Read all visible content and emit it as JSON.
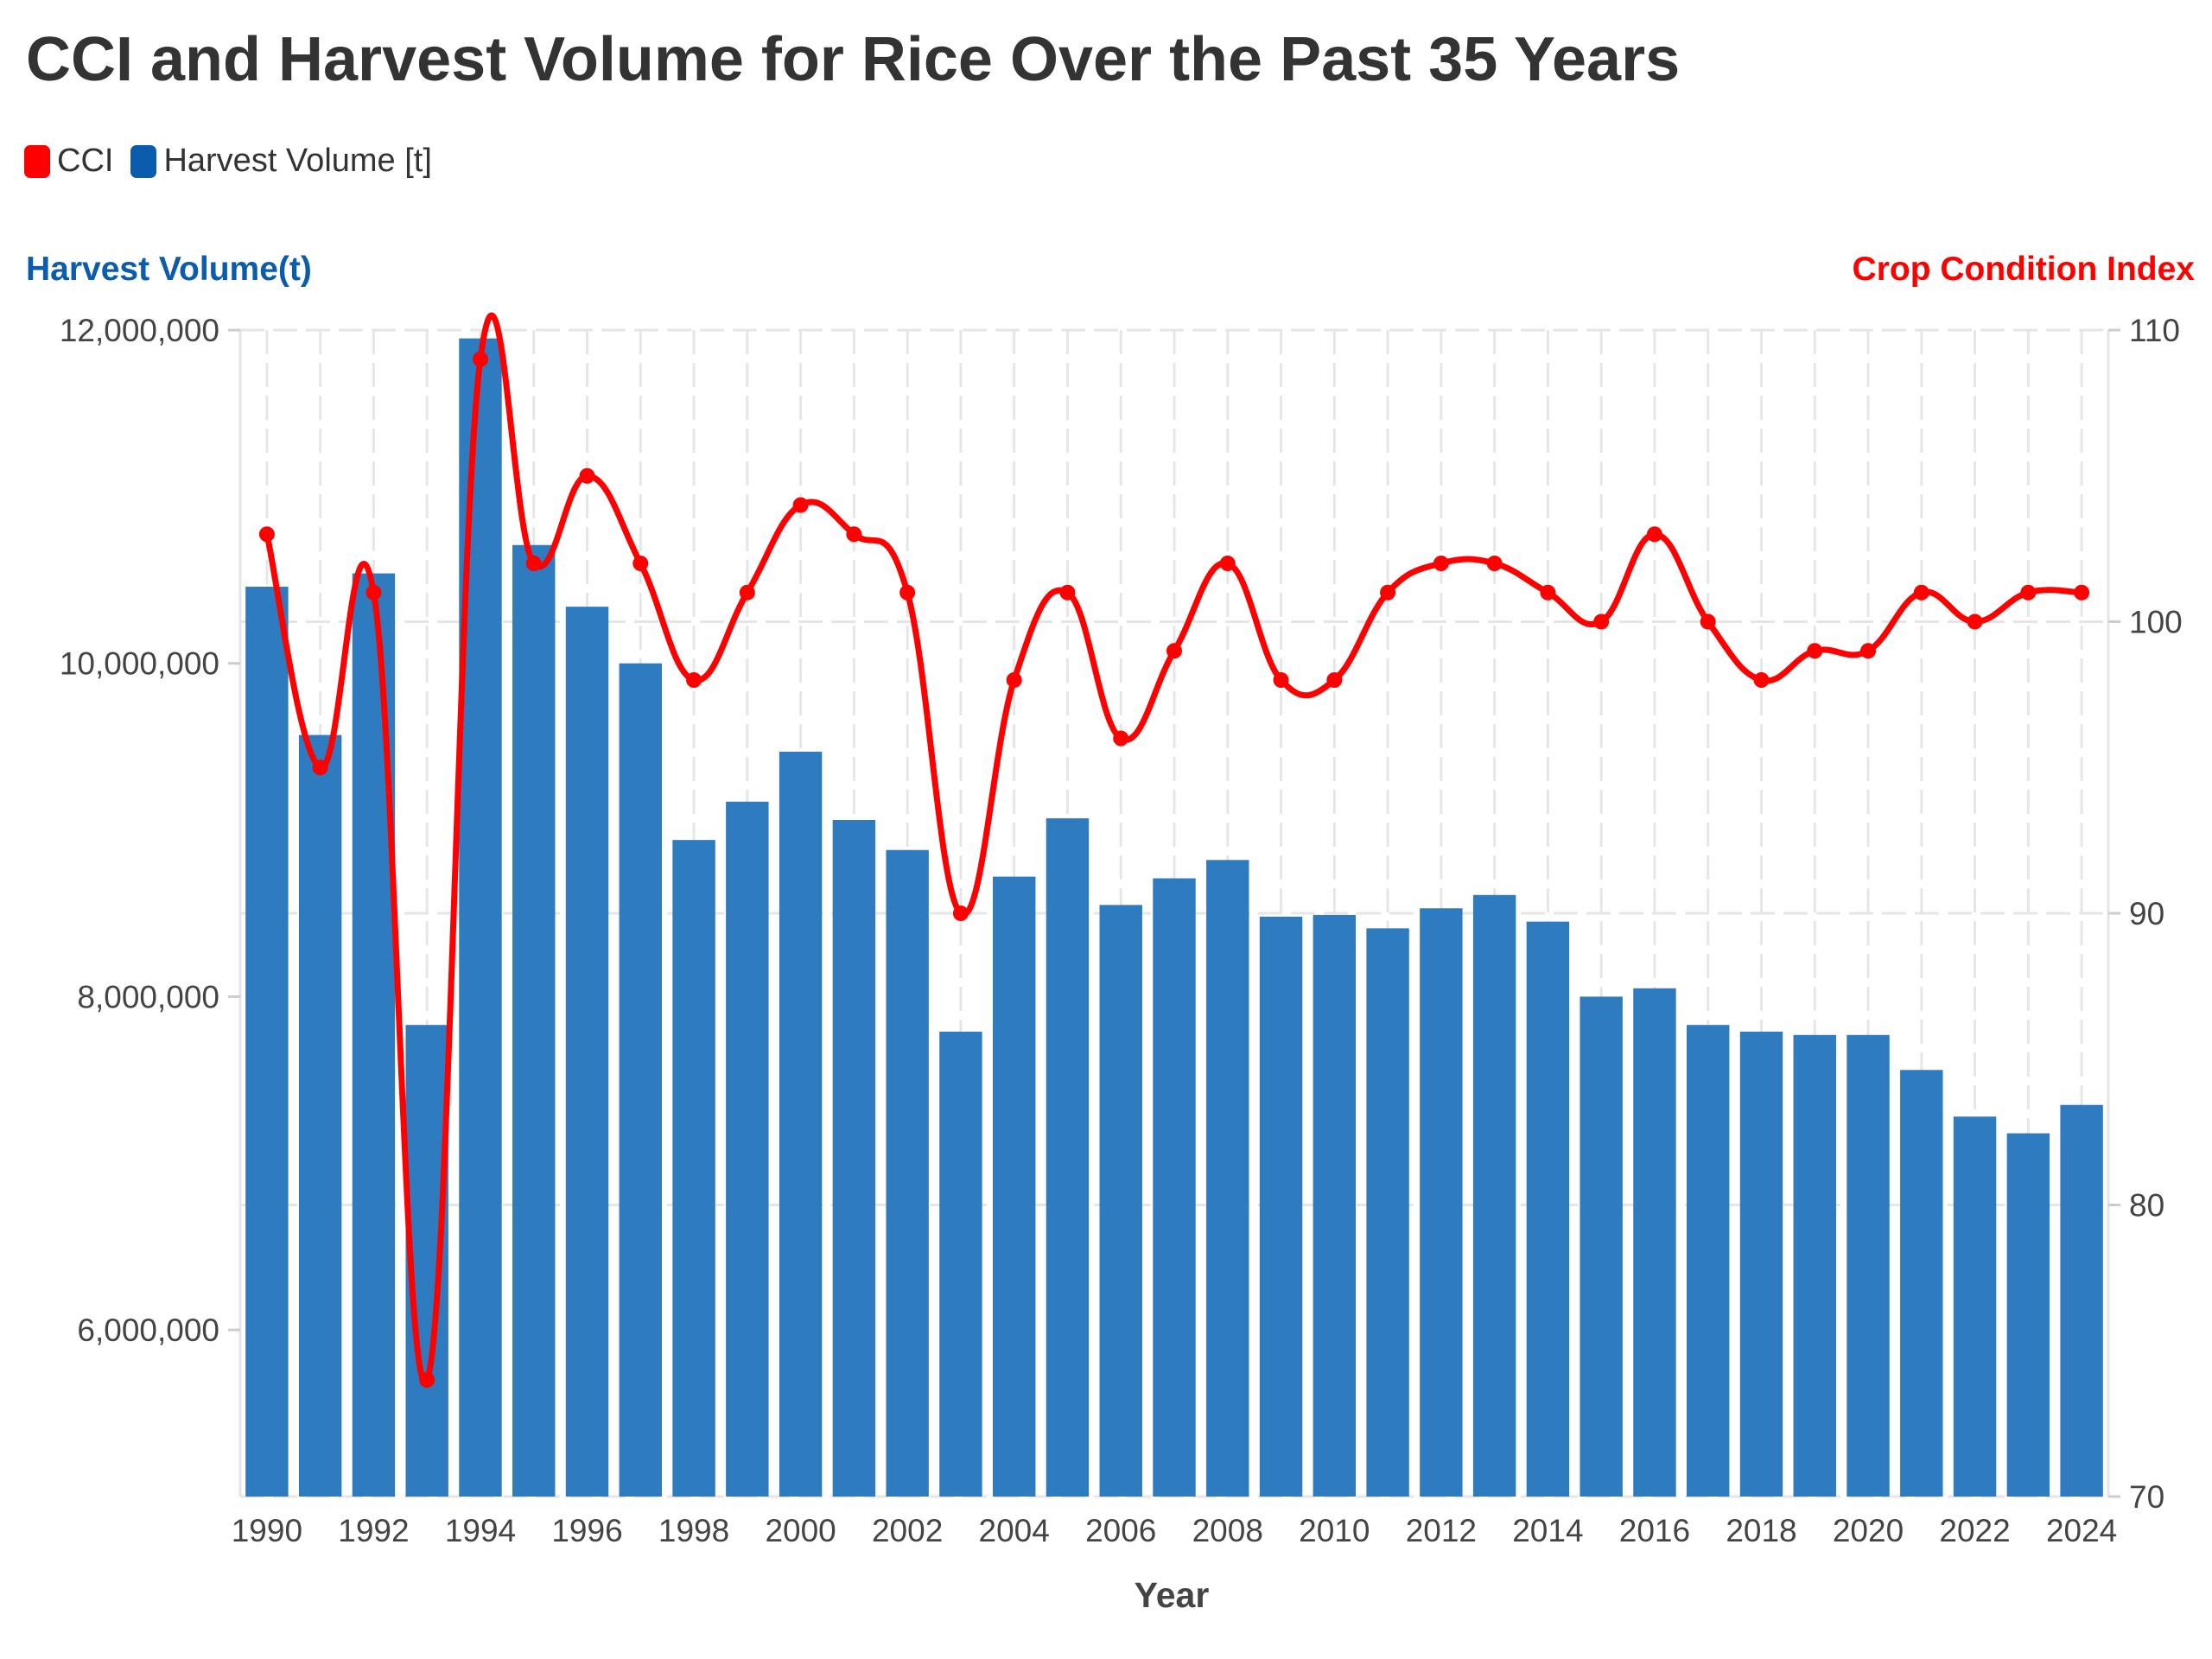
{
  "title": "CCI and Harvest Volume for Rice Over the Past 35 Years",
  "legend": [
    {
      "label": "CCI",
      "color": "#ff0000"
    },
    {
      "label": "Harvest Volume [t]",
      "color": "#0b5cad"
    }
  ],
  "colors": {
    "bar": "#2f7bc0",
    "line": "#ff0000",
    "left_axis_title": "#0b5cad",
    "right_axis_title": "#ff0000",
    "grid": "#e6e6e6"
  },
  "chart_data": {
    "type": "bar",
    "title": "CCI and Harvest Volume for Rice Over the Past 35 Years",
    "xlabel": "Year",
    "ylabel": "Harvest Volume(t)",
    "y2label": "Crop Condition Index",
    "ylim": [
      5000000,
      12000000
    ],
    "y2lim": [
      70,
      110
    ],
    "yticks": [
      "6,000,000",
      "8,000,000",
      "10,000,000",
      "12,000,000"
    ],
    "y2ticks": [
      "70",
      "80",
      "90",
      "100",
      "110"
    ],
    "xticks": [
      "1990",
      "1992",
      "1994",
      "1996",
      "1998",
      "2000",
      "2002",
      "2004",
      "2006",
      "2008",
      "2010",
      "2012",
      "2014",
      "2016",
      "2018",
      "2020",
      "2022",
      "2024"
    ],
    "grid": true,
    "legend_position": "top-left",
    "categories": [
      "1990",
      "1991",
      "1992",
      "1993",
      "1994",
      "1995",
      "1996",
      "1997",
      "1998",
      "1999",
      "2000",
      "2001",
      "2002",
      "2003",
      "2004",
      "2005",
      "2006",
      "2007",
      "2008",
      "2009",
      "2010",
      "2011",
      "2012",
      "2013",
      "2014",
      "2015",
      "2016",
      "2017",
      "2018",
      "2019",
      "2020",
      "2021",
      "2022",
      "2023",
      "2024"
    ],
    "series": [
      {
        "name": "Harvest Volume [t]",
        "type": "bar",
        "axis": "left",
        "values": [
          10460000,
          9570000,
          10540000,
          7830000,
          11950000,
          10710000,
          10340000,
          10000000,
          8940000,
          9170000,
          9470000,
          9060000,
          8880000,
          7790000,
          8720000,
          9070000,
          8550000,
          8710000,
          8820000,
          8480000,
          8490000,
          8410000,
          8530000,
          8610000,
          8450000,
          8000000,
          8050000,
          7830000,
          7790000,
          7770000,
          7770000,
          7560000,
          7280000,
          7180000,
          7350000
        ]
      },
      {
        "name": "CCI",
        "type": "line",
        "axis": "right",
        "values": [
          103,
          95,
          101,
          74,
          109,
          102,
          105,
          102,
          98,
          101,
          104,
          103,
          101,
          90,
          98,
          101,
          96,
          99,
          102,
          98,
          98,
          101,
          102,
          102,
          101,
          100,
          103,
          100,
          98,
          99,
          99,
          101,
          100,
          101,
          101
        ]
      }
    ]
  }
}
